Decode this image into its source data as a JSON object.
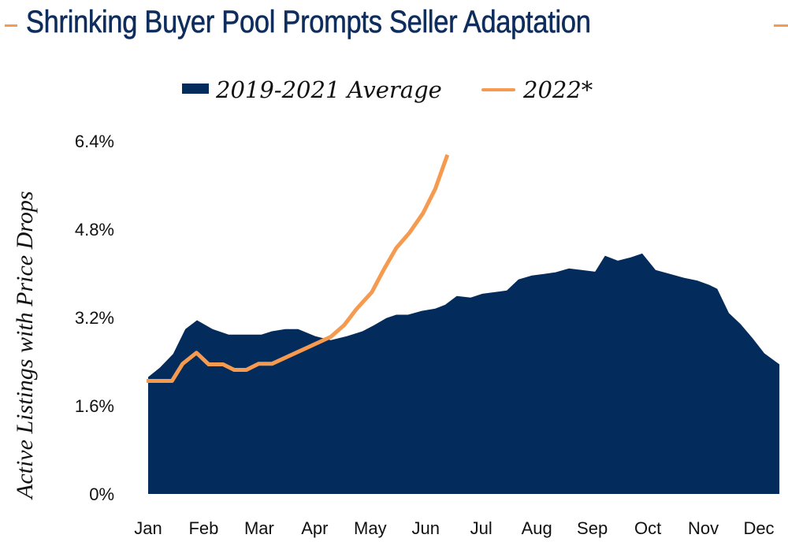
{
  "colors": {
    "title": "#0E2D5C",
    "area": "#032B5B",
    "line": "#F59A4F",
    "text": "#111111"
  },
  "chart_data": {
    "type": "area",
    "title": "Shrinking Buyer Pool Prompts Seller Adaptation",
    "xlabel": "",
    "ylabel": "Active Listings with Price Drops",
    "categories": [
      "Jan",
      "Feb",
      "Mar",
      "Apr",
      "May",
      "Jun",
      "Jul",
      "Aug",
      "Sep",
      "Oct",
      "Nov",
      "Dec"
    ],
    "yticks": [
      "0%",
      "1.6%",
      "3.2%",
      "4.8%",
      "6.4%"
    ],
    "ytick_values": [
      0,
      1.6,
      3.2,
      4.8,
      6.4
    ],
    "ylim": [
      0,
      6.4
    ],
    "xlim_months": [
      0,
      11.37
    ],
    "grid": false,
    "legend": {
      "placement": "top-center",
      "entries": [
        "2019-2021 Average",
        "2022*"
      ]
    },
    "series": [
      {
        "name": "2019-2021 Average",
        "kind": "area",
        "x_month_index": [
          0.0,
          0.21,
          0.45,
          0.67,
          0.88,
          1.16,
          1.45,
          1.73,
          2.04,
          2.23,
          2.47,
          2.7,
          3.01,
          3.29,
          3.58,
          3.86,
          4.07,
          4.29,
          4.47,
          4.68,
          4.93,
          5.17,
          5.35,
          5.56,
          5.81,
          6.02,
          6.25,
          6.46,
          6.67,
          6.91,
          7.13,
          7.34,
          7.58,
          7.81,
          8.05,
          8.23,
          8.46,
          8.69,
          8.9,
          9.14,
          9.4,
          9.65,
          9.89,
          10.11,
          10.25,
          10.46,
          10.67,
          10.89,
          11.1,
          11.37
        ],
        "values_pct": [
          2.12,
          2.29,
          2.54,
          2.99,
          3.15,
          2.99,
          2.89,
          2.89,
          2.89,
          2.95,
          2.99,
          2.99,
          2.86,
          2.79,
          2.86,
          2.95,
          3.06,
          3.19,
          3.25,
          3.25,
          3.32,
          3.36,
          3.43,
          3.59,
          3.56,
          3.63,
          3.66,
          3.69,
          3.89,
          3.96,
          3.99,
          4.02,
          4.09,
          4.06,
          4.03,
          4.32,
          4.23,
          4.29,
          4.36,
          4.06,
          3.99,
          3.92,
          3.87,
          3.79,
          3.72,
          3.28,
          3.08,
          2.82,
          2.55,
          2.35
        ]
      },
      {
        "name": "2022*",
        "kind": "line",
        "x_month_index": [
          0.0,
          0.43,
          0.62,
          0.87,
          1.09,
          1.35,
          1.55,
          1.77,
          1.99,
          2.23,
          3.29,
          3.53,
          3.75,
          4.03,
          4.24,
          4.47,
          4.71,
          4.95,
          5.17,
          5.39
        ],
        "values_pct": [
          2.05,
          2.05,
          2.36,
          2.56,
          2.35,
          2.35,
          2.25,
          2.25,
          2.36,
          2.36,
          2.85,
          3.06,
          3.35,
          3.66,
          4.06,
          4.46,
          4.74,
          5.09,
          5.53,
          6.15
        ]
      }
    ]
  }
}
